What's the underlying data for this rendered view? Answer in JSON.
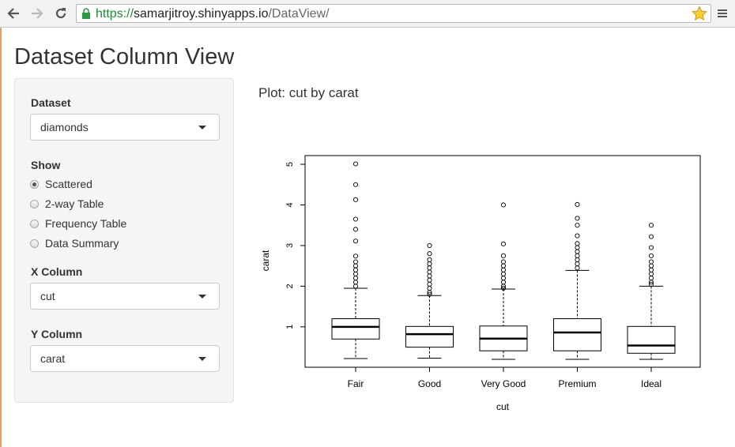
{
  "browser": {
    "url_scheme": "https://",
    "url_host": "samarjitroy.shinyapps.io",
    "url_path": "/DataView/"
  },
  "page": {
    "title": "Dataset Column View"
  },
  "sidebar": {
    "dataset_label": "Dataset",
    "dataset_value": "diamonds",
    "show_label": "Show",
    "show_options": [
      "Scattered",
      "2-way Table",
      "Frequency Table",
      "Data Summary"
    ],
    "show_selected": "Scattered",
    "x_label": "X Column",
    "x_value": "cut",
    "y_label": "Y Column",
    "y_value": "carat"
  },
  "plot_title": "Plot: cut by carat",
  "chart_data": {
    "type": "boxplot",
    "xlabel": "cut",
    "ylabel": "carat",
    "categories": [
      "Fair",
      "Good",
      "Very Good",
      "Premium",
      "Ideal"
    ],
    "yticks": [
      1,
      2,
      3,
      4,
      5
    ],
    "ylim": [
      0.2,
      5.02
    ],
    "boxes": [
      {
        "name": "Fair",
        "min": 0.22,
        "q1": 0.7,
        "median": 1.0,
        "q3": 1.2,
        "whisker_high": 1.95,
        "outliers": [
          5.01,
          4.5,
          4.13,
          3.65,
          3.4,
          3.11,
          2.74,
          2.6,
          2.5,
          2.4,
          2.3,
          2.2,
          2.1,
          2.0
        ]
      },
      {
        "name": "Good",
        "min": 0.23,
        "q1": 0.5,
        "median": 0.82,
        "q3": 1.01,
        "whisker_high": 1.77,
        "outliers": [
          3.0,
          2.8,
          2.65,
          2.55,
          2.45,
          2.35,
          2.25,
          2.15,
          2.05,
          1.95,
          1.85,
          1.8
        ]
      },
      {
        "name": "Very Good",
        "min": 0.2,
        "q1": 0.41,
        "median": 0.71,
        "q3": 1.02,
        "whisker_high": 1.93,
        "outliers": [
          4.0,
          3.04,
          2.75,
          2.6,
          2.5,
          2.4,
          2.3,
          2.2,
          2.1,
          2.0,
          1.95
        ]
      },
      {
        "name": "Premium",
        "min": 0.2,
        "q1": 0.41,
        "median": 0.86,
        "q3": 1.2,
        "whisker_high": 2.39,
        "outliers": [
          4.01,
          3.67,
          3.5,
          3.24,
          3.05,
          2.95,
          2.85,
          2.75,
          2.65,
          2.55,
          2.45
        ]
      },
      {
        "name": "Ideal",
        "min": 0.2,
        "q1": 0.35,
        "median": 0.54,
        "q3": 1.01,
        "whisker_high": 2.0,
        "outliers": [
          3.5,
          3.22,
          2.95,
          2.75,
          2.6,
          2.5,
          2.4,
          2.3,
          2.2,
          2.1,
          2.05
        ]
      }
    ]
  }
}
